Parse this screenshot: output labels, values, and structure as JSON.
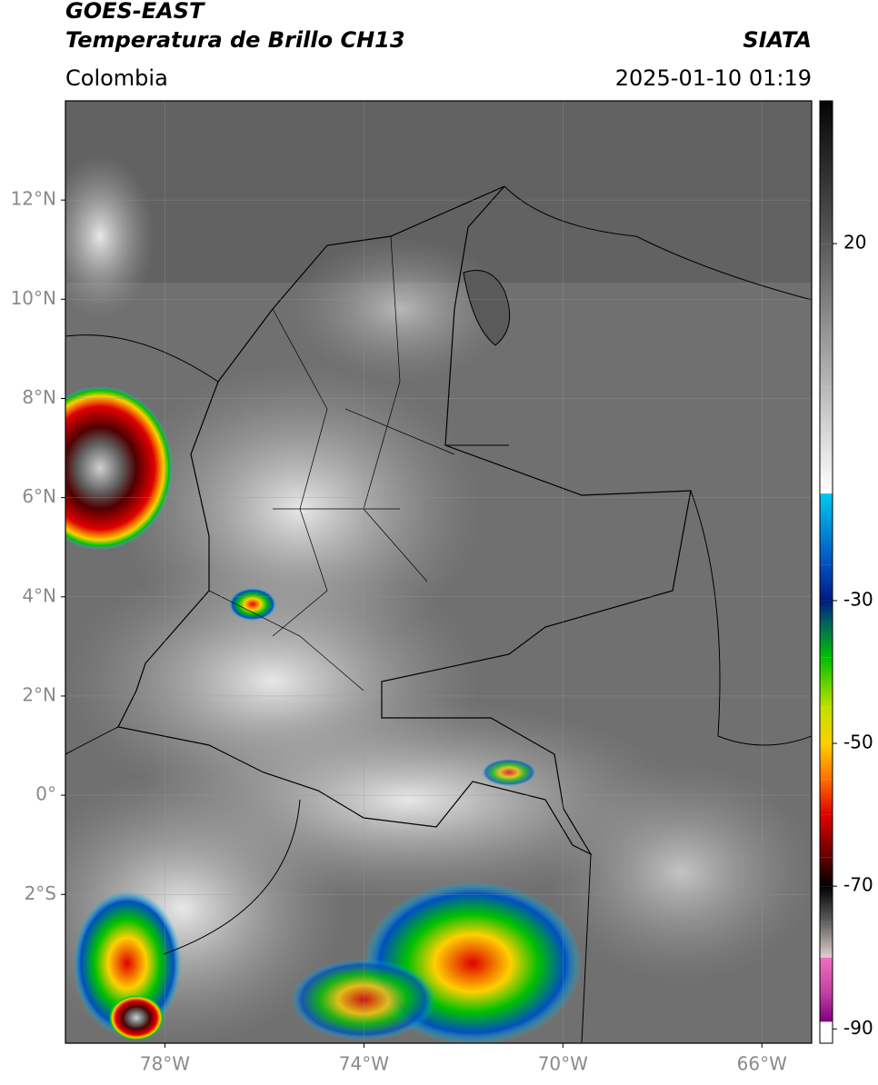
{
  "header": {
    "title": "GOES-EAST",
    "subtitle": "Temperatura de Brillo CH13",
    "source": "SIATA",
    "region": "Colombia",
    "timestamp": "2025-01-10 01:19"
  },
  "map": {
    "xlim": [
      -80,
      -65
    ],
    "ylim": [
      -5,
      14
    ],
    "xticks": [
      {
        "value": -78,
        "label": "78°W"
      },
      {
        "value": -74,
        "label": "74°W"
      },
      {
        "value": -70,
        "label": "70°W"
      },
      {
        "value": -66,
        "label": "66°W"
      }
    ],
    "yticks": [
      {
        "value": 12,
        "label": "12°N"
      },
      {
        "value": 10,
        "label": "10°N"
      },
      {
        "value": 8,
        "label": "8°N"
      },
      {
        "value": 6,
        "label": "6°N"
      },
      {
        "value": 4,
        "label": "4°N"
      },
      {
        "value": 2,
        "label": "2°N"
      },
      {
        "value": 0,
        "label": "0°"
      },
      {
        "value": -2,
        "label": "2°S"
      }
    ],
    "grid": true
  },
  "colorbar": {
    "lim": [
      -92,
      40
    ],
    "ticks": [
      20,
      -30,
      -50,
      -70,
      -90
    ],
    "colors": [
      [
        40,
        "#050505"
      ],
      [
        20,
        "#5a5a5a"
      ],
      [
        0,
        "#b8b8b8"
      ],
      [
        -15,
        "#ffffff"
      ],
      [
        -15,
        "#00c8f0"
      ],
      [
        -25,
        "#0050c0"
      ],
      [
        -30,
        "#001a80"
      ],
      [
        -33,
        "#006060"
      ],
      [
        -38,
        "#00c000"
      ],
      [
        -45,
        "#c0e000"
      ],
      [
        -50,
        "#ffd000"
      ],
      [
        -55,
        "#ff7000"
      ],
      [
        -60,
        "#e00000"
      ],
      [
        -66,
        "#600000"
      ],
      [
        -70,
        "#000000"
      ],
      [
        -75,
        "#606060"
      ],
      [
        -80,
        "#e0d0d0"
      ],
      [
        -80,
        "#f070c0"
      ],
      [
        -85,
        "#c040a0"
      ],
      [
        -89,
        "#800080"
      ],
      [
        -89,
        "#ffffff"
      ],
      [
        -92,
        "#ffffff"
      ]
    ]
  }
}
